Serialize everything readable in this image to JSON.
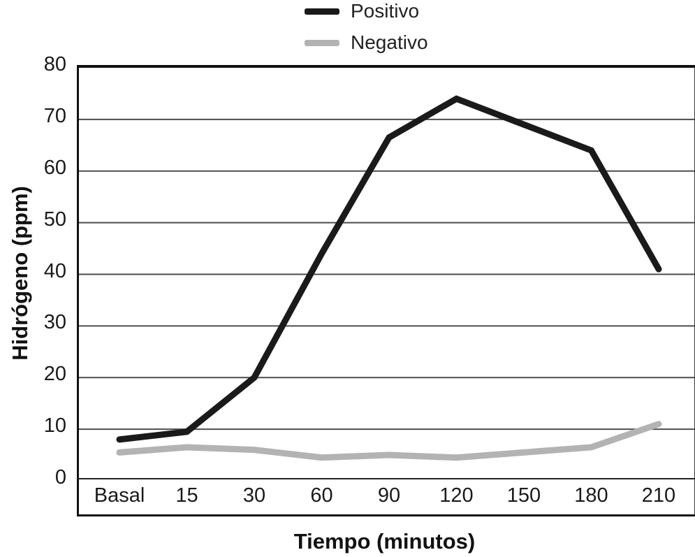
{
  "legend": {
    "items": [
      {
        "label": "Positivo",
        "color": "#1a1a1a"
      },
      {
        "label": "Negativo",
        "color": "#b3b3b3"
      }
    ]
  },
  "chart_data": {
    "type": "line",
    "title": "",
    "categories": [
      "Basal",
      "15",
      "30",
      "60",
      "90",
      "120",
      "150",
      "180",
      "210"
    ],
    "series": [
      {
        "name": "Positivo",
        "color": "#1a1a1a",
        "values": [
          8,
          9.5,
          20,
          44,
          66.5,
          74,
          69,
          64,
          41
        ]
      },
      {
        "name": "Negativo",
        "color": "#b3b3b3",
        "values": [
          5.5,
          6.5,
          6,
          4.5,
          5,
          4.5,
          5.5,
          6.5,
          11
        ]
      }
    ],
    "xlabel": "Tiempo (minutos)",
    "ylabel": "Hidrógeno (ppm)",
    "ylim": [
      0,
      80
    ],
    "yticks": [
      80,
      70,
      60,
      50,
      40,
      30,
      20,
      10,
      0
    ],
    "grid": true,
    "gridline_color": "#4d4d4d",
    "legend_position": "top-center"
  }
}
